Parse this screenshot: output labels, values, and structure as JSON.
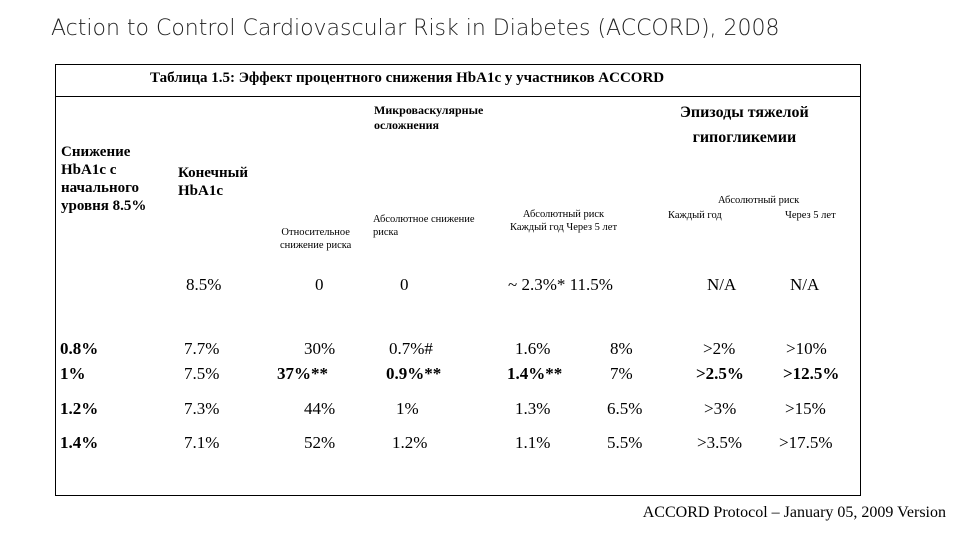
{
  "slide_title": "Action to Control Cardiovascular Risk in Diabetes (ACCORD), 2008",
  "table": {
    "caption": "Таблица 1.5: Эффект процентного снижения HbA1c у участников ACCORD",
    "headers": {
      "reduction": [
        "Снижение",
        "HbA1c с",
        "начального",
        "уровня 8.5%"
      ],
      "final": [
        "Конечный",
        "HbA1c"
      ],
      "micro_group": [
        "Микроваскулярные",
        "осложнения"
      ],
      "relative_risk": [
        "Относительное",
        "снижение риска"
      ],
      "absolute_reduction": [
        "Абсолютное снижение",
        "риска"
      ],
      "absolute_risk": [
        "Абсолютный риск",
        "Каждый год Через 5 лет"
      ],
      "hypo_group": [
        "Эпизоды тяжелой",
        "гипогликемии"
      ],
      "hypo_absolute": "Абсолютный риск",
      "hypo_each_year": "Каждый год",
      "hypo_five_years": "Через 5 лет"
    },
    "rows": [
      {
        "reduction": "",
        "final": "8.5%",
        "rel": "0",
        "abs_red": "0",
        "risk_year": "~ 2.3%* 11.5%",
        "risk_5y": "",
        "hypo_year": "N/A",
        "hypo_5y": "N/A"
      },
      {
        "reduction": "0.8%",
        "final": "7.7%",
        "rel": "30%",
        "abs_red": "0.7%#",
        "risk_year": "1.6%",
        "risk_5y": "8%",
        "hypo_year": ">2%",
        "hypo_5y": ">10%"
      },
      {
        "reduction": "1%",
        "final": "7.5%",
        "rel": "37%**",
        "abs_red": "0.9%**",
        "risk_year": "1.4%**",
        "risk_5y": "7%",
        "hypo_year": ">2.5%",
        "hypo_5y": ">12.5%"
      },
      {
        "reduction": "1.2%",
        "final": "7.3%",
        "rel": "44%",
        "abs_red": "1%",
        "risk_year": "1.3%",
        "risk_5y": "6.5%",
        "hypo_year": ">3%",
        "hypo_5y": ">15%"
      },
      {
        "reduction": "1.4%",
        "final": "7.1%",
        "rel": "52%",
        "abs_red": "1.2%",
        "risk_year": "1.1%",
        "risk_5y": "5.5%",
        "hypo_year": ">3.5%",
        "hypo_5y": ">17.5%"
      }
    ]
  },
  "footer": "ACCORD Protocol – January 05, 2009 Version"
}
